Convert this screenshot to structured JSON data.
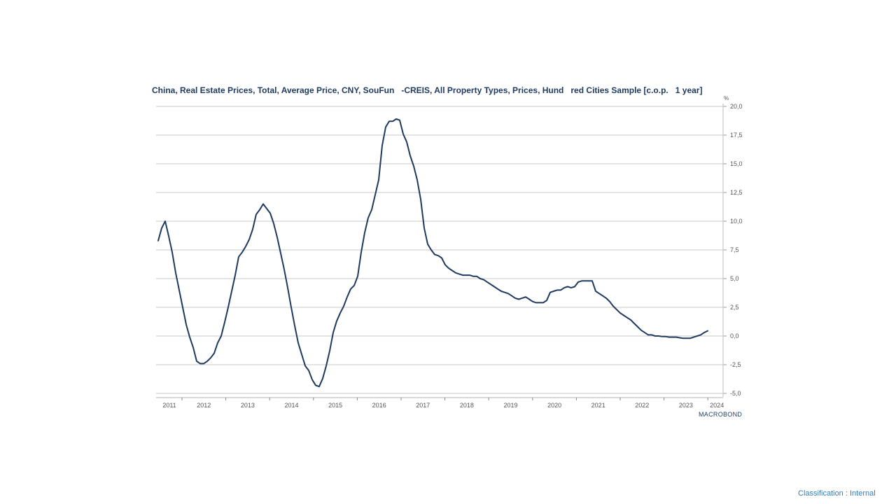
{
  "footer": {
    "classification": "Classification : Internal"
  },
  "branding": {
    "logo_text": "MACROBOND"
  },
  "chart_data": {
    "type": "line",
    "title": "China, Real Estate Prices, Total, Average Price, CNY, SouFun   -CREIS, All Property Types, Prices, Hund   red Cities Sample [c.o.p.   1 year]",
    "xlabel": "",
    "ylabel": "%",
    "ylim": [
      -5.0,
      20.0
    ],
    "y_ticks": [
      "20,0",
      "17,5",
      "15,0",
      "12,5",
      "10,0",
      "7,5",
      "5,0",
      "2,5",
      "0,0",
      "-2,5",
      "-5,0"
    ],
    "x_tick_labels": [
      "2011",
      "2012",
      "2013",
      "2014",
      "2015",
      "2016",
      "2017",
      "2018",
      "2019",
      "2020",
      "2021",
      "2022",
      "2023",
      "2024"
    ],
    "grid": true,
    "legend": "none",
    "line_color": "#1f3a5f",
    "series": [
      {
        "name": "China, Real Estate Prices, Total, Average Price, CNY, SouFun-CREIS, All Property Types, Hundred Cities Sample [c.o.p. 1 year]",
        "start": "2010-09",
        "frequency": "monthly (approx.)",
        "values": [
          8.3,
          9.4,
          10.0,
          8.7,
          7.3,
          5.5,
          4.0,
          2.5,
          1.0,
          -0.1,
          -1.0,
          -2.2,
          -2.4,
          -2.4,
          -2.2,
          -1.9,
          -1.5,
          -0.6,
          0.0,
          1.2,
          2.5,
          3.9,
          5.3,
          6.9,
          7.3,
          7.8,
          8.4,
          9.3,
          10.6,
          11.0,
          11.5,
          11.1,
          10.7,
          9.8,
          8.6,
          7.2,
          5.8,
          4.2,
          2.5,
          0.9,
          -0.6,
          -1.6,
          -2.6,
          -3.0,
          -3.8,
          -4.3,
          -4.4,
          -3.7,
          -2.6,
          -1.3,
          0.3,
          1.3,
          2.0,
          2.6,
          3.4,
          4.1,
          4.4,
          5.2,
          7.3,
          9.0,
          10.3,
          11.0,
          12.3,
          13.6,
          16.6,
          18.2,
          18.7,
          18.7,
          18.9,
          18.8,
          17.6,
          16.9,
          15.7,
          14.8,
          13.6,
          11.9,
          9.4,
          8.0,
          7.5,
          7.1,
          7.0,
          6.8,
          6.2,
          5.9,
          5.7,
          5.5,
          5.4,
          5.3,
          5.3,
          5.3,
          5.2,
          5.2,
          5.0,
          4.9,
          4.7,
          4.5,
          4.3,
          4.1,
          3.9,
          3.8,
          3.7,
          3.5,
          3.3,
          3.2,
          3.3,
          3.4,
          3.2,
          3.0,
          2.9,
          2.9,
          2.9,
          3.1,
          3.8,
          3.9,
          4.0,
          4.0,
          4.2,
          4.3,
          4.2,
          4.3,
          4.7,
          4.8,
          4.8,
          4.8,
          4.8,
          3.9,
          3.7,
          3.5,
          3.3,
          3.0,
          2.6,
          2.3,
          2.0,
          1.8,
          1.6,
          1.4,
          1.1,
          0.8,
          0.5,
          0.3,
          0.1,
          0.1,
          0.0,
          0.0,
          -0.05,
          -0.05,
          -0.1,
          -0.1,
          -0.1,
          -0.15,
          -0.2,
          -0.2,
          -0.2,
          -0.1,
          0.0,
          0.1,
          0.3,
          0.45
        ]
      }
    ]
  }
}
